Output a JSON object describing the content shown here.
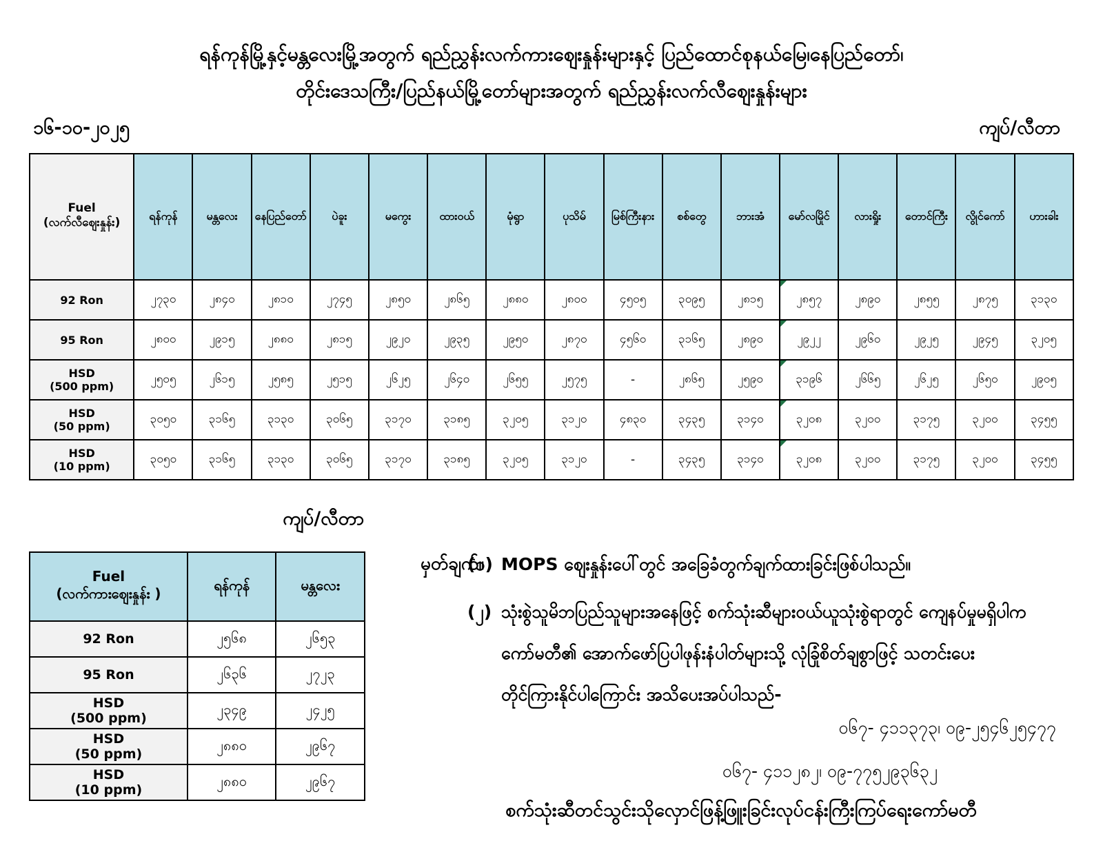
{
  "page": {
    "title_line1": "ရန်ကုန်မြို့နှင့်မန္တလေးမြို့အတွက် ရည်ညွှန်းလက်ကားဈေးနှုန်းများနှင့် ပြည်ထောင်စုနယ်မြေ၊နေပြည်တော်၊",
    "title_line2": "တိုင်းဒေသကြီး/ပြည်နယ်မြို့တော်များအတွက် ရည်ညွှန်းလက်လီဈေးနှုန်းများ",
    "date": "၁၆-၁၀-၂၀၂၅",
    "unit_label_top": "ကျပ်/လီတာ",
    "unit_label_small": "ကျပ်/လီတာ"
  },
  "retail_table": {
    "corner_line1": "Fuel",
    "corner_line2": "(လက်လီဈေးနှုန်း)",
    "cities": [
      "ရန်ကုန်",
      "မန္တလေး",
      "နေပြည်တော်",
      "ပဲခူး",
      "မကွေး",
      "ထားဝယ်",
      "မုံရွာ",
      "ပုသိမ်",
      "မြစ်ကြီးနား",
      "စစ်တွေ",
      "ဘားအံ",
      "မော်လမြိုင်",
      "လားရှိုး",
      "တောင်ကြီး",
      "လွိုင်ကော်",
      "ဟားခါး"
    ],
    "flagged_column_index": 11,
    "rows": [
      {
        "fuel": [
          "92 Ron"
        ],
        "values": [
          "၂၇၃၀",
          "၂၈၄၀",
          "၂၈၁၀",
          "၂၇၄၅",
          "၂၈၅၀",
          "၂၈၆၅",
          "၂၈၈၀",
          "၂၈၀၀",
          "၄၅၀၅",
          "၃၀၉၅",
          "၂၈၁၅",
          "၂၈၅၇",
          "၂၈၉၀",
          "၂၈၅၅",
          "၂၈၇၅",
          "၃၁၃၀"
        ]
      },
      {
        "fuel": [
          "95 Ron"
        ],
        "values": [
          "၂၈၀၀",
          "၂၉၁၅",
          "၂၈၈၀",
          "၂၈၁၅",
          "၂၉၂၀",
          "၂၉၃၅",
          "၂၉၅၀",
          "၂၈၇၀",
          "၄၅၆၀",
          "၃၁၆၅",
          "၂၈၉၀",
          "၂၉၂၂",
          "၂၉၆၀",
          "၂၉၂၅",
          "၂၉၄၅",
          "၃၂၀၅"
        ]
      },
      {
        "fuel": [
          "HSD",
          "(500 ppm)"
        ],
        "values": [
          "၂၅၀၅",
          "၂၆၁၅",
          "၂၅၈၅",
          "၂၅၁၅",
          "၂၆၂၅",
          "၂၆၄၀",
          "၂၆၅၅",
          "၂၅၇၅",
          "-",
          "၂၈၆၅",
          "၂၅၉၀",
          "၃၁၉၆",
          "၂၆၆၅",
          "၂၆၂၅",
          "၂၆၅၀",
          "၂၉၀၅"
        ]
      },
      {
        "fuel": [
          "HSD",
          "(50 ppm)"
        ],
        "values": [
          "၃၀၅၀",
          "၃၁၆၅",
          "၃၁၃၀",
          "၃၀၆၅",
          "၃၁၇၀",
          "၃၁၈၅",
          "၃၂၀၅",
          "၃၁၂၀",
          "၄၈၃၀",
          "၃၄၃၅",
          "၃၁၄၀",
          "၃၂၀၈",
          "၃၂၀၀",
          "၃၁၇၅",
          "၃၂၀၀",
          "၃၄၅၅"
        ]
      },
      {
        "fuel": [
          "HSD",
          "(10 ppm)"
        ],
        "values": [
          "၃၀၅၀",
          "၃၁၆၅",
          "၃၁၃၀",
          "၃၀၆၅",
          "၃၁၇၀",
          "၃၁၈၅",
          "၃၂၀၅",
          "၃၁၂၀",
          "-",
          "၃၄၃၅",
          "၃၁၄၀",
          "၃၂၀၈",
          "၃၂၀၀",
          "၃၁၇၅",
          "၃၂၀၀",
          "၃၄၅၅"
        ]
      }
    ]
  },
  "wholesale_table": {
    "corner_line1": "Fuel",
    "corner_line2": "(လက်ကားဈေးနှုန်း )",
    "cities": [
      "ရန်ကုန်",
      "မန္တလေး"
    ],
    "flagged_column_index": -1,
    "rows": [
      {
        "fuel": [
          "92 Ron"
        ],
        "values": [
          "၂၅၆၈",
          "၂၆၅၃"
        ]
      },
      {
        "fuel": [
          "95 Ron"
        ],
        "values": [
          "၂၆၃၆",
          "၂၇၂၃"
        ]
      },
      {
        "fuel": [
          "HSD",
          "(500 ppm)"
        ],
        "values": [
          "၂၃၄၉",
          "၂၄၂၅"
        ]
      },
      {
        "fuel": [
          "HSD",
          "(50 ppm)"
        ],
        "values": [
          "၂၈၈၀",
          "၂၉၆၇"
        ]
      },
      {
        "fuel": [
          "HSD",
          "(10 ppm)"
        ],
        "values": [
          "၂၈၈၀",
          "၂၉၆၇"
        ]
      }
    ]
  },
  "notes": {
    "label": "မှတ်ချက်။",
    "item1_num": "(၁)",
    "item1_text": "MOPS ဈေးနှုန်းပေါ်တွင် အခြေခံတွက်ချက်ထားခြင်းဖြစ်ပါသည်။",
    "item2_num": "(၂)",
    "item2_line1": "သုံးစွဲသူမိဘပြည်သူများအနေဖြင့် စက်သုံးဆီများဝယ်ယူသုံးစွဲရာတွင် ကျေနပ်မှုမရှိပါက",
    "item2_line2": "ကော်မတီ၏ အောက်ဖော်ပြပါဖုန်းနံပါတ်များသို့ လုံခြုံစိတ်ချစွာဖြင့် သတင်းပေး",
    "item2_line3": "တိုင်ကြားနိုင်ပါကြောင်း အသိပေးအပ်ပါသည်-",
    "phone1": "၀၆၇- ၄၁၁၃၇၃၊ ၀၉-၂၅၄၆၂၅၄၇၇",
    "phone2": "၀၆၇- ၄၁၁၂၈၂၊ ၀၉-၇၇၅၂၉၃၆၃၂"
  },
  "footer": {
    "committee": "စက်သုံးဆီတင်သွင်းသိုလှောင်ဖြန့်ဖြူးခြင်းလုပ်ငန်းကြီးကြပ်ရေးကော်မတီ"
  },
  "colors": {
    "header_fill": "#b7dee8",
    "label_fill": "#f2f2f2",
    "border": "#000000",
    "flag_green": "#217346"
  }
}
